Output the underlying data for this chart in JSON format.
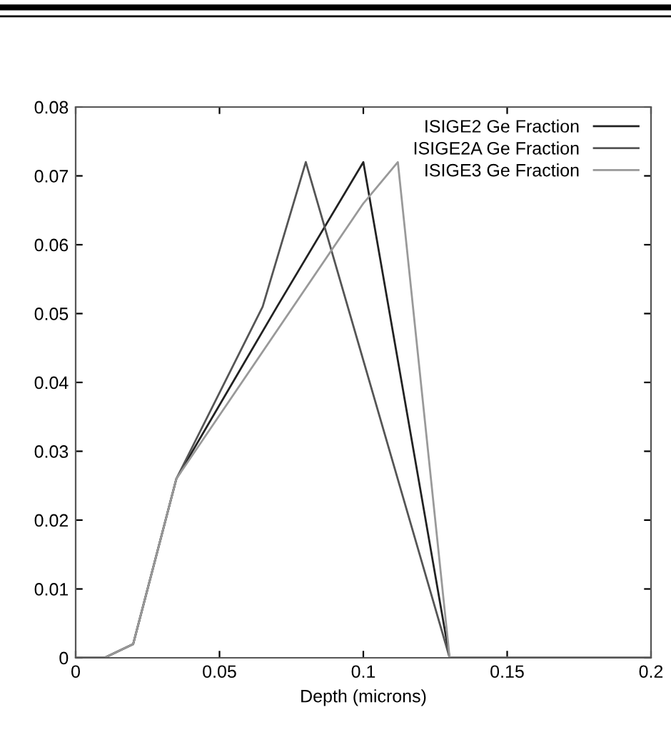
{
  "chart_data": {
    "type": "line",
    "xlabel": "Depth (microns)",
    "xlim": [
      0,
      0.2
    ],
    "xticks": [
      0,
      0.05,
      0.1,
      0.15,
      0.2
    ],
    "ylim": [
      0,
      0.08
    ],
    "yticks": [
      0,
      0.01,
      0.02,
      0.03,
      0.04,
      0.05,
      0.06,
      0.07,
      0.08
    ],
    "grid": false,
    "legend": "top right",
    "marker": "none",
    "line_style": "solid",
    "series": [
      {
        "name": "ISIGE2 Ge Fraction",
        "color": "#222222",
        "x": [
          0,
          0.01,
          0.02,
          0.035,
          0.07,
          0.1,
          0.13,
          0.2
        ],
        "values": [
          0,
          0,
          0.002,
          0.026,
          0.051,
          0.072,
          0,
          0
        ]
      },
      {
        "name": "ISIGE2A Ge Fraction",
        "color": "#555555",
        "x": [
          0,
          0.01,
          0.02,
          0.035,
          0.065,
          0.08,
          0.13,
          0.2
        ],
        "values": [
          0,
          0,
          0.002,
          0.026,
          0.051,
          0.072,
          0,
          0
        ]
      },
      {
        "name": "ISIGE3 Ge Fraction",
        "color": "#999999",
        "x": [
          0,
          0.01,
          0.02,
          0.035,
          0.1,
          0.112,
          0.13,
          0.2
        ],
        "values": [
          0,
          0,
          0.002,
          0.026,
          0.066,
          0.072,
          0,
          0
        ]
      }
    ]
  }
}
